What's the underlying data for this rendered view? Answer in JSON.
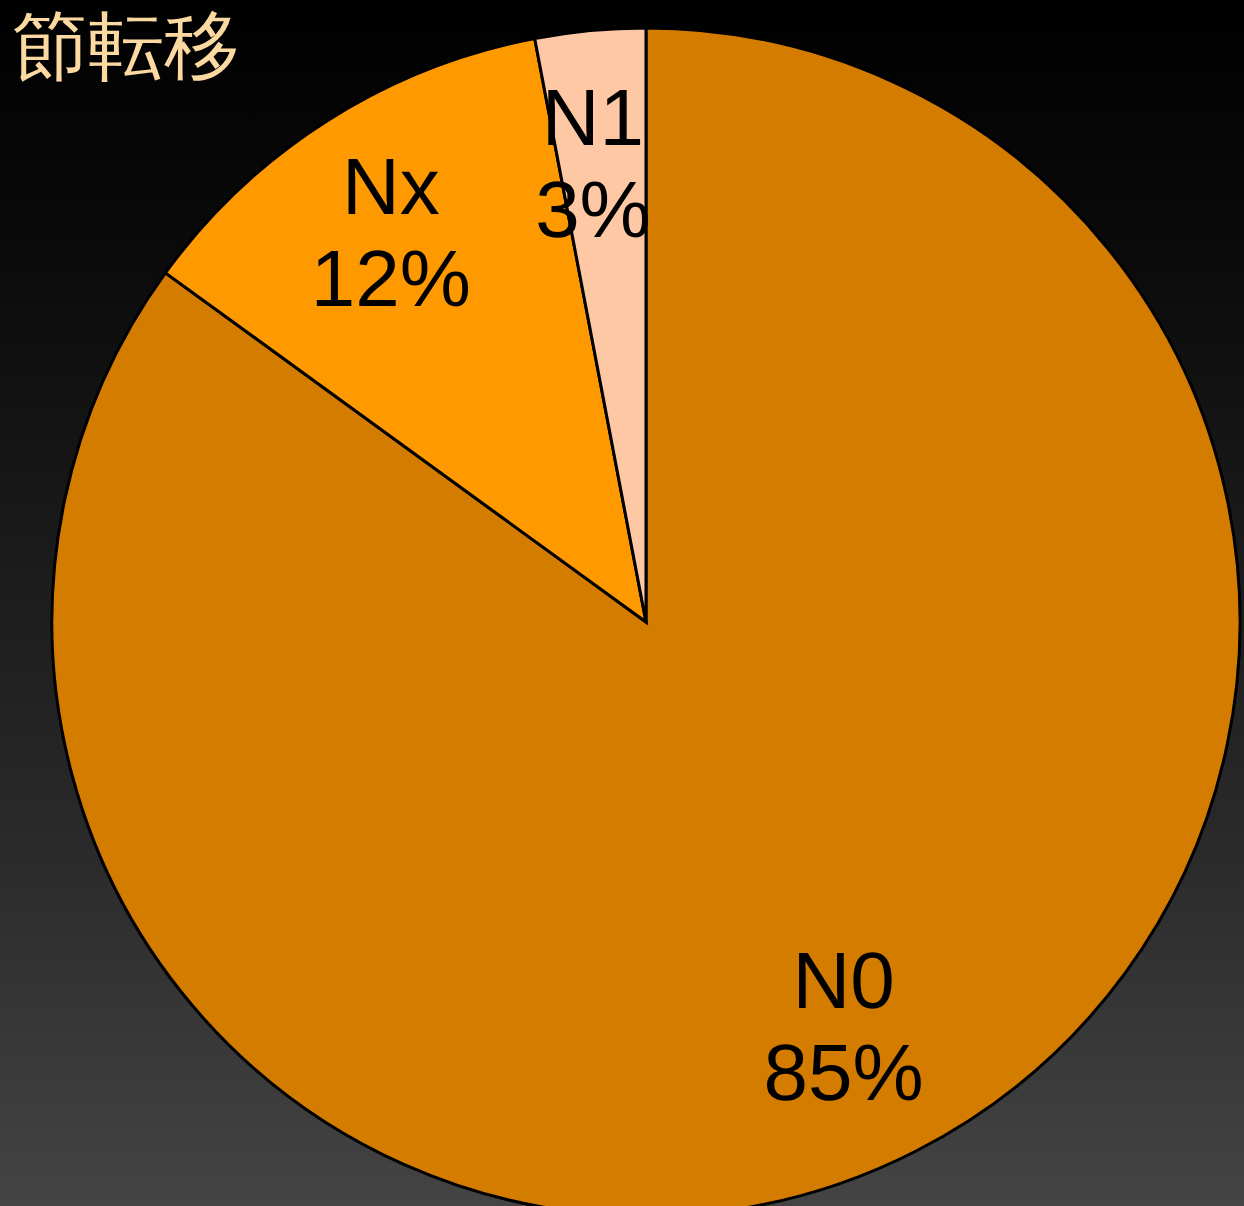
{
  "chart_data": {
    "type": "pie",
    "title": "節転移",
    "categories": [
      "N0",
      "Nx",
      "N1"
    ],
    "values": [
      85,
      12,
      3
    ],
    "value_labels": [
      "85%",
      "12%",
      "3%"
    ],
    "colors": [
      "#d47c00",
      "#ff9900",
      "#ffc8a5"
    ]
  }
}
